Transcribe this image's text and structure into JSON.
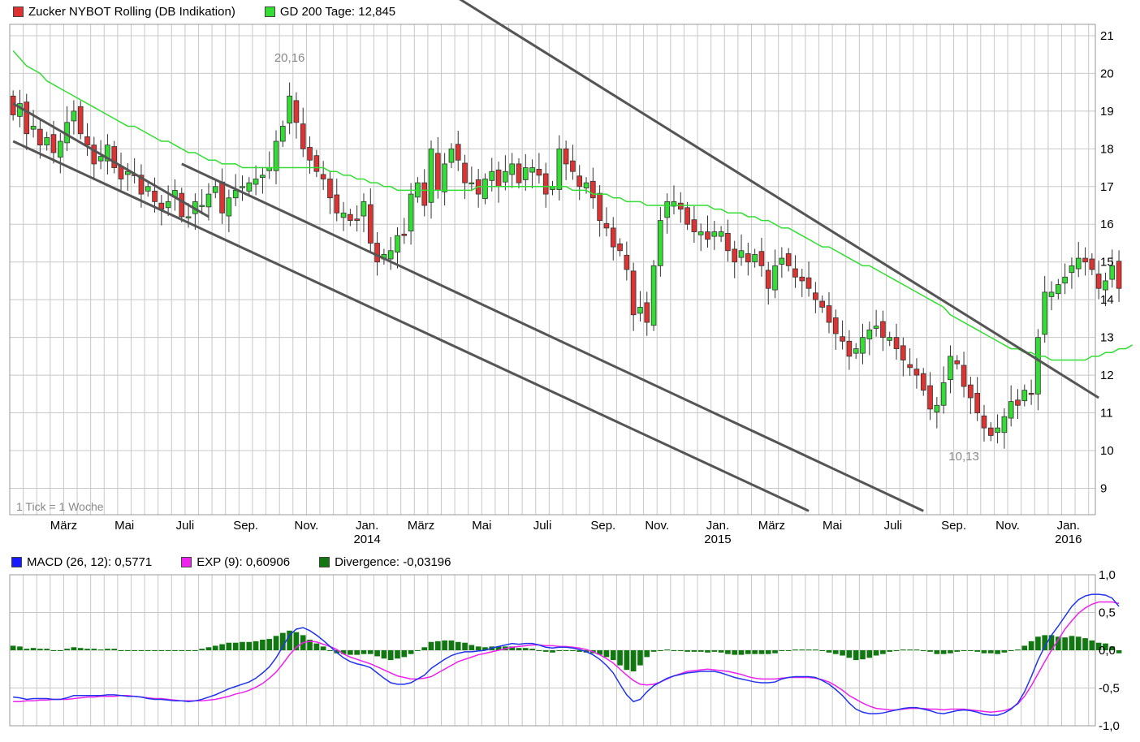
{
  "main_legend": [
    {
      "label": "Zucker NYBOT Rolling (DB Indikation)",
      "color": "#e03030"
    },
    {
      "label": "GD 200 Tage: 12,845",
      "color": "#33dd33"
    }
  ],
  "macd_legend": [
    {
      "label": "MACD (26, 12): 0,5771",
      "color": "#1a1aff"
    },
    {
      "label": "EXP (9): 0,60906",
      "color": "#ee22ee"
    },
    {
      "label": "Divergence: -0,03196",
      "color": "#117711"
    }
  ],
  "tick_note": "1 Tick = 1 Woche",
  "colors": {
    "up": "#33dd33",
    "down": "#dd3333",
    "gd": "#33dd33",
    "macd": "#2233ee",
    "signal": "#ee22ee",
    "hist": "#117711",
    "trend": "#555555",
    "grid": "#c8c8c8"
  },
  "chart_data": [
    {
      "type": "candlestick",
      "title": "Zucker NYBOT Rolling (DB Indikation)",
      "ylim": [
        8.3,
        21.3
      ],
      "y_ticks": [
        "21",
        "20",
        "19",
        "18",
        "17",
        "16",
        "15",
        "14",
        "13",
        "12",
        "11",
        "10",
        "9"
      ],
      "x_tick_labels": [
        {
          "label": "März",
          "week": 8
        },
        {
          "label": "Mai",
          "week": 17
        },
        {
          "label": "Juli",
          "week": 26
        },
        {
          "label": "Sep.",
          "week": 35
        },
        {
          "label": "Nov.",
          "week": 44
        },
        {
          "label": "Jan.",
          "week": 53,
          "year": "2014"
        },
        {
          "label": "März",
          "week": 61
        },
        {
          "label": "Mai",
          "week": 70
        },
        {
          "label": "Juli",
          "week": 79
        },
        {
          "label": "Sep.",
          "week": 88
        },
        {
          "label": "Nov.",
          "week": 96
        },
        {
          "label": "Jan.",
          "week": 105,
          "year": "2015"
        },
        {
          "label": "März",
          "week": 113
        },
        {
          "label": "Mai",
          "week": 122
        },
        {
          "label": "Juli",
          "week": 131
        },
        {
          "label": "Sep.",
          "week": 140
        },
        {
          "label": "Nov.",
          "week": 148
        },
        {
          "label": "Jan.",
          "week": 157,
          "year": "2016"
        }
      ],
      "weeks": 161,
      "close": [
        18.9,
        19.2,
        18.4,
        18.6,
        18.1,
        18.3,
        17.9,
        18.2,
        18.7,
        19.0,
        18.4,
        18.1,
        17.6,
        17.8,
        18.1,
        17.5,
        17.2,
        17.4,
        17.3,
        16.8,
        17.0,
        16.6,
        16.4,
        16.6,
        16.9,
        16.2,
        16.2,
        16.6,
        16.5,
        16.8,
        17.0,
        16.3,
        16.7,
        16.9,
        17.0,
        17.1,
        17.2,
        17.3,
        17.5,
        18.2,
        18.6,
        19.4,
        18.7,
        18.0,
        17.7,
        17.4,
        17.2,
        16.7,
        16.3,
        16.3,
        16.1,
        16.1,
        16.6,
        15.5,
        15.0,
        15.2,
        15.3,
        15.7,
        15.7,
        16.8,
        17.1,
        16.5,
        18.0,
        16.9,
        17.6,
        18.0,
        17.7,
        17.1,
        17.1,
        16.8,
        17.2,
        17.4,
        17.0,
        17.4,
        17.6,
        17.1,
        17.5,
        17.5,
        17.3,
        16.8,
        17.0,
        18.0,
        17.6,
        17.4,
        17.0,
        17.1,
        16.7,
        16.1,
        15.9,
        15.4,
        15.3,
        14.8,
        13.6,
        13.8,
        13.4,
        14.9,
        16.1,
        16.6,
        16.6,
        16.4,
        16.0,
        15.8,
        15.8,
        15.6,
        15.8,
        15.8,
        15.3,
        15.0,
        15.3,
        15.0,
        15.2,
        14.9,
        14.3,
        14.9,
        15.1,
        14.9,
        14.6,
        14.5,
        14.3,
        14.0,
        13.8,
        13.4,
        13.1,
        12.9,
        12.5,
        12.7,
        13.0,
        13.2,
        13.3,
        13.0,
        13.0,
        12.7,
        12.4,
        12.2,
        12.0,
        11.6,
        11.1,
        11.2,
        11.8,
        12.5,
        12.3,
        11.7,
        11.4,
        11.0,
        10.6,
        10.4,
        10.6,
        10.9,
        11.3,
        11.2,
        11.6,
        11.5,
        13.0,
        14.2,
        14.2,
        14.4,
        14.6,
        14.9,
        15.1,
        15.0,
        14.8,
        14.3,
        14.5,
        14.9,
        14.3
      ],
      "gd200": [
        20.6,
        20.4,
        20.2,
        20.1,
        20.0,
        19.8,
        19.7,
        19.6,
        19.5,
        19.4,
        19.3,
        19.2,
        19.1,
        19.0,
        18.9,
        18.8,
        18.7,
        18.6,
        18.6,
        18.5,
        18.4,
        18.3,
        18.2,
        18.2,
        18.1,
        18.0,
        17.9,
        17.9,
        17.8,
        17.7,
        17.7,
        17.6,
        17.6,
        17.6,
        17.5,
        17.5,
        17.5,
        17.5,
        17.5,
        17.5,
        17.5,
        17.5,
        17.5,
        17.5,
        17.5,
        17.5,
        17.5,
        17.4,
        17.4,
        17.3,
        17.3,
        17.2,
        17.2,
        17.1,
        17.1,
        17.0,
        17.0,
        16.9,
        16.9,
        16.9,
        16.9,
        16.9,
        16.9,
        16.9,
        16.9,
        16.9,
        16.9,
        16.9,
        16.9,
        17.0,
        17.0,
        17.0,
        17.0,
        17.0,
        17.0,
        17.0,
        17.0,
        17.0,
        17.0,
        17.0,
        17.0,
        17.0,
        17.0,
        16.9,
        16.9,
        16.9,
        16.8,
        16.8,
        16.8,
        16.7,
        16.7,
        16.6,
        16.6,
        16.6,
        16.5,
        16.5,
        16.5,
        16.5,
        16.5,
        16.5,
        16.5,
        16.5,
        16.5,
        16.5,
        16.4,
        16.4,
        16.3,
        16.3,
        16.3,
        16.2,
        16.2,
        16.1,
        16.1,
        16.0,
        15.9,
        15.9,
        15.8,
        15.7,
        15.6,
        15.5,
        15.4,
        15.4,
        15.3,
        15.2,
        15.1,
        15.0,
        14.9,
        14.9,
        14.8,
        14.7,
        14.6,
        14.5,
        14.4,
        14.3,
        14.2,
        14.1,
        14.0,
        13.9,
        13.8,
        13.6,
        13.5,
        13.4,
        13.3,
        13.2,
        13.1,
        13.0,
        12.9,
        12.8,
        12.7,
        12.7,
        12.6,
        12.6,
        12.5,
        12.5,
        12.4,
        12.4,
        12.4,
        12.4,
        12.4,
        12.4,
        12.5,
        12.5,
        12.6,
        12.6,
        12.7,
        12.7,
        12.8
      ],
      "annotations": [
        {
          "text": "20,16",
          "week": 41,
          "value": 20.16,
          "pos": "above"
        },
        {
          "text": "10,13",
          "week": 141,
          "value": 10.13,
          "pos": "below"
        }
      ],
      "trend_lines": [
        {
          "from": [
            0.0,
            19.2
          ],
          "to": [
            29.0,
            16.2
          ]
        },
        {
          "from": [
            0.0,
            18.2
          ],
          "to": [
            118.0,
            8.4
          ]
        },
        {
          "from": [
            25.0,
            17.6
          ],
          "to": [
            135.0,
            8.4
          ]
        },
        {
          "from": [
            57.0,
            23.0
          ],
          "to": [
            161.0,
            11.4
          ]
        }
      ]
    },
    {
      "type": "macd",
      "ylim": [
        -1.0,
        1.0
      ],
      "y_ticks": [
        "1,0",
        "0,5",
        "0,0",
        "-0,5",
        "-1,0"
      ],
      "macd": [
        -0.62,
        -0.63,
        -0.65,
        -0.64,
        -0.64,
        -0.64,
        -0.65,
        -0.65,
        -0.63,
        -0.6,
        -0.6,
        -0.6,
        -0.6,
        -0.6,
        -0.59,
        -0.59,
        -0.6,
        -0.61,
        -0.61,
        -0.62,
        -0.64,
        -0.65,
        -0.65,
        -0.66,
        -0.67,
        -0.67,
        -0.68,
        -0.67,
        -0.65,
        -0.62,
        -0.59,
        -0.55,
        -0.51,
        -0.48,
        -0.45,
        -0.42,
        -0.37,
        -0.3,
        -0.22,
        -0.1,
        0.05,
        0.2,
        0.28,
        0.3,
        0.26,
        0.2,
        0.13,
        0.05,
        -0.03,
        -0.1,
        -0.15,
        -0.18,
        -0.2,
        -0.23,
        -0.3,
        -0.37,
        -0.43,
        -0.45,
        -0.45,
        -0.43,
        -0.38,
        -0.33,
        -0.24,
        -0.18,
        -0.12,
        -0.07,
        -0.04,
        -0.02,
        -0.02,
        -0.01,
        0.0,
        0.03,
        0.05,
        0.07,
        0.09,
        0.08,
        0.09,
        0.09,
        0.07,
        0.04,
        0.03,
        0.04,
        0.04,
        0.03,
        0.01,
        -0.02,
        -0.06,
        -0.12,
        -0.2,
        -0.3,
        -0.45,
        -0.59,
        -0.68,
        -0.65,
        -0.55,
        -0.47,
        -0.42,
        -0.37,
        -0.34,
        -0.32,
        -0.3,
        -0.29,
        -0.28,
        -0.28,
        -0.28,
        -0.3,
        -0.33,
        -0.36,
        -0.38,
        -0.4,
        -0.42,
        -0.43,
        -0.43,
        -0.42,
        -0.38,
        -0.36,
        -0.35,
        -0.35,
        -0.35,
        -0.36,
        -0.4,
        -0.45,
        -0.52,
        -0.6,
        -0.7,
        -0.78,
        -0.82,
        -0.84,
        -0.84,
        -0.83,
        -0.81,
        -0.79,
        -0.77,
        -0.76,
        -0.76,
        -0.78,
        -0.8,
        -0.83,
        -0.84,
        -0.82,
        -0.8,
        -0.79,
        -0.8,
        -0.82,
        -0.85,
        -0.86,
        -0.86,
        -0.83,
        -0.78,
        -0.7,
        -0.55,
        -0.35,
        -0.13,
        0.05,
        0.2,
        0.32,
        0.45,
        0.58,
        0.67,
        0.72,
        0.74,
        0.74,
        0.73,
        0.69,
        0.58
      ],
      "signal": [
        -0.68,
        -0.68,
        -0.67,
        -0.67,
        -0.66,
        -0.66,
        -0.65,
        -0.65,
        -0.65,
        -0.64,
        -0.63,
        -0.62,
        -0.62,
        -0.61,
        -0.61,
        -0.61,
        -0.6,
        -0.6,
        -0.61,
        -0.62,
        -0.63,
        -0.64,
        -0.64,
        -0.65,
        -0.66,
        -0.67,
        -0.67,
        -0.67,
        -0.67,
        -0.66,
        -0.65,
        -0.63,
        -0.61,
        -0.58,
        -0.56,
        -0.53,
        -0.49,
        -0.44,
        -0.37,
        -0.29,
        -0.18,
        -0.06,
        0.04,
        0.1,
        0.12,
        0.11,
        0.08,
        0.05,
        0.01,
        -0.05,
        -0.09,
        -0.12,
        -0.15,
        -0.18,
        -0.22,
        -0.26,
        -0.3,
        -0.34,
        -0.36,
        -0.38,
        -0.38,
        -0.37,
        -0.35,
        -0.3,
        -0.25,
        -0.2,
        -0.15,
        -0.12,
        -0.09,
        -0.06,
        -0.04,
        -0.02,
        0.0,
        0.02,
        0.04,
        0.05,
        0.06,
        0.07,
        0.07,
        0.06,
        0.06,
        0.05,
        0.05,
        0.04,
        0.03,
        0.01,
        -0.02,
        -0.06,
        -0.11,
        -0.17,
        -0.25,
        -0.33,
        -0.4,
        -0.45,
        -0.46,
        -0.45,
        -0.42,
        -0.38,
        -0.34,
        -0.31,
        -0.28,
        -0.27,
        -0.26,
        -0.25,
        -0.26,
        -0.27,
        -0.28,
        -0.3,
        -0.32,
        -0.35,
        -0.37,
        -0.38,
        -0.38,
        -0.38,
        -0.37,
        -0.36,
        -0.36,
        -0.36,
        -0.36,
        -0.37,
        -0.39,
        -0.42,
        -0.47,
        -0.53,
        -0.6,
        -0.65,
        -0.7,
        -0.74,
        -0.77,
        -0.78,
        -0.79,
        -0.79,
        -0.78,
        -0.77,
        -0.77,
        -0.77,
        -0.78,
        -0.78,
        -0.79,
        -0.78,
        -0.78,
        -0.78,
        -0.79,
        -0.8,
        -0.81,
        -0.82,
        -0.81,
        -0.8,
        -0.77,
        -0.71,
        -0.61,
        -0.47,
        -0.31,
        -0.15,
        0.0,
        0.14,
        0.28,
        0.39,
        0.49,
        0.56,
        0.61,
        0.64,
        0.64,
        0.64,
        0.62
      ]
    }
  ]
}
